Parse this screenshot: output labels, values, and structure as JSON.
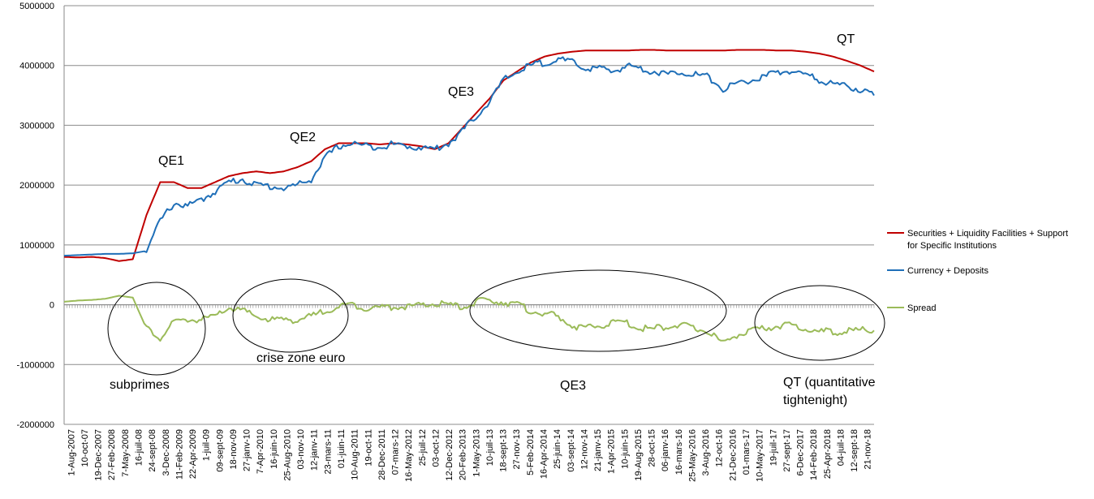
{
  "chart_data": {
    "type": "line",
    "title": "",
    "xlabel": "",
    "ylabel": "",
    "ylim": [
      -2000000,
      5000000
    ],
    "y_ticks": [
      -2000000,
      -1000000,
      0,
      1000000,
      2000000,
      3000000,
      4000000,
      5000000
    ],
    "y_tick_labels": [
      "-2000000",
      "-1000000",
      "0",
      "1000000",
      "2000000",
      "3000000",
      "4000000",
      "5000000"
    ],
    "x_tick_labels": [
      "1-Aug-2007",
      "10-oct-07",
      "19-Dec-2007",
      "27-Feb-2008",
      "7-May-2008",
      "16-juil-08",
      "24-sept-08",
      "3-Dec-2008",
      "11-Feb-2009",
      "22-Apr-2009",
      "1-juil-09",
      "09-sept-09",
      "18-nov-09",
      "27-janv-10",
      "7-Apr-2010",
      "16-juin-10",
      "25-Aug-2010",
      "03-nov-10",
      "12-janv-11",
      "23-mars-11",
      "01-juin-11",
      "10-Aug-2011",
      "19-oct-11",
      "28-Dec-2011",
      "07-mars-12",
      "16-May-2012",
      "25-juil-12",
      "03-oct-12",
      "12-Dec-2012",
      "20-Feb-2013",
      "1-May-2013",
      "10-juil-13",
      "18-sept-13",
      "27-nov-13",
      "5-Feb-2014",
      "16-Apr-2014",
      "25-juin-14",
      "03-sept-14",
      "12-nov-14",
      "21-janv-15",
      "1-Apr-2015",
      "10-juin-15",
      "19-Aug-2015",
      "28-oct-15",
      "06-janv-16",
      "16-mars-16",
      "25-May-2016",
      "3-Aug-2016",
      "12-oct-16",
      "21-Dec-2016",
      "01-mars-17",
      "10-May-2017",
      "19-juil-17",
      "27-sept-17",
      "6-Dec-2017",
      "14-Feb-2018",
      "25-Apr-2018",
      "04-juil-18",
      "12-sept-18",
      "21-nov-18"
    ],
    "grid": true,
    "legend_position": "right",
    "series": [
      {
        "name": "Securities + Liquidity Facilities + Support for Specific Institutions",
        "color": "#C00000",
        "values": [
          800000,
          790000,
          800000,
          780000,
          730000,
          760000,
          1500000,
          2050000,
          2050000,
          1950000,
          1950000,
          2050000,
          2150000,
          2200000,
          2230000,
          2200000,
          2230000,
          2300000,
          2400000,
          2600000,
          2700000,
          2700000,
          2700000,
          2680000,
          2700000,
          2680000,
          2650000,
          2600000,
          2700000,
          2950000,
          3200000,
          3450000,
          3750000,
          3900000,
          4050000,
          4150000,
          4200000,
          4230000,
          4250000,
          4250000,
          4250000,
          4250000,
          4260000,
          4260000,
          4250000,
          4250000,
          4250000,
          4250000,
          4250000,
          4260000,
          4260000,
          4260000,
          4250000,
          4250000,
          4230000,
          4200000,
          4150000,
          4080000,
          4000000,
          3900000
        ]
      },
      {
        "name": "Currency + Deposits",
        "color": "#1F6FB8",
        "values": [
          820000,
          830000,
          840000,
          850000,
          850000,
          860000,
          900000,
          1400000,
          1700000,
          1650000,
          1750000,
          1900000,
          2050000,
          2100000,
          2000000,
          1980000,
          1950000,
          2000000,
          2100000,
          2450000,
          2650000,
          2700000,
          2650000,
          2650000,
          2680000,
          2650000,
          2630000,
          2600000,
          2700000,
          2900000,
          3150000,
          3400000,
          3750000,
          3900000,
          4000000,
          4050000,
          4100000,
          4050000,
          3950000,
          3950000,
          3900000,
          4000000,
          3950000,
          3900000,
          3850000,
          3900000,
          3850000,
          3800000,
          3600000,
          3700000,
          3750000,
          3800000,
          3900000,
          3900000,
          3850000,
          3750000,
          3700000,
          3650000,
          3600000,
          3500000
        ]
      },
      {
        "name": "Spread",
        "color": "#9BBB59",
        "values": [
          50000,
          70000,
          80000,
          100000,
          150000,
          120000,
          -400000,
          -550000,
          -300000,
          -250000,
          -250000,
          -200000,
          -50000,
          -100000,
          -200000,
          -250000,
          -250000,
          -250000,
          -200000,
          -100000,
          -30000,
          0,
          -50000,
          -50000,
          -30000,
          -30000,
          -20000,
          20000,
          0,
          -50000,
          50000,
          70000,
          50000,
          0,
          -100000,
          -150000,
          -200000,
          -350000,
          -400000,
          -350000,
          -300000,
          -300000,
          -400000,
          -400000,
          -350000,
          -350000,
          -400000,
          -450000,
          -650000,
          -500000,
          -450000,
          -400000,
          -350000,
          -350000,
          -400000,
          -450000,
          -450000,
          -450000,
          -420000,
          -430000
        ]
      }
    ],
    "annotations": {
      "qe1": "QE1",
      "qe2": "QE2",
      "qe3_top": "QE3",
      "qt_top": "QT",
      "subprimes": "subprimes",
      "crise": "crise zone euro",
      "qe3_bottom": "QE3",
      "qt_bottom_line1": "QT (quantitative",
      "qt_bottom_line2": "tightenight)"
    }
  }
}
